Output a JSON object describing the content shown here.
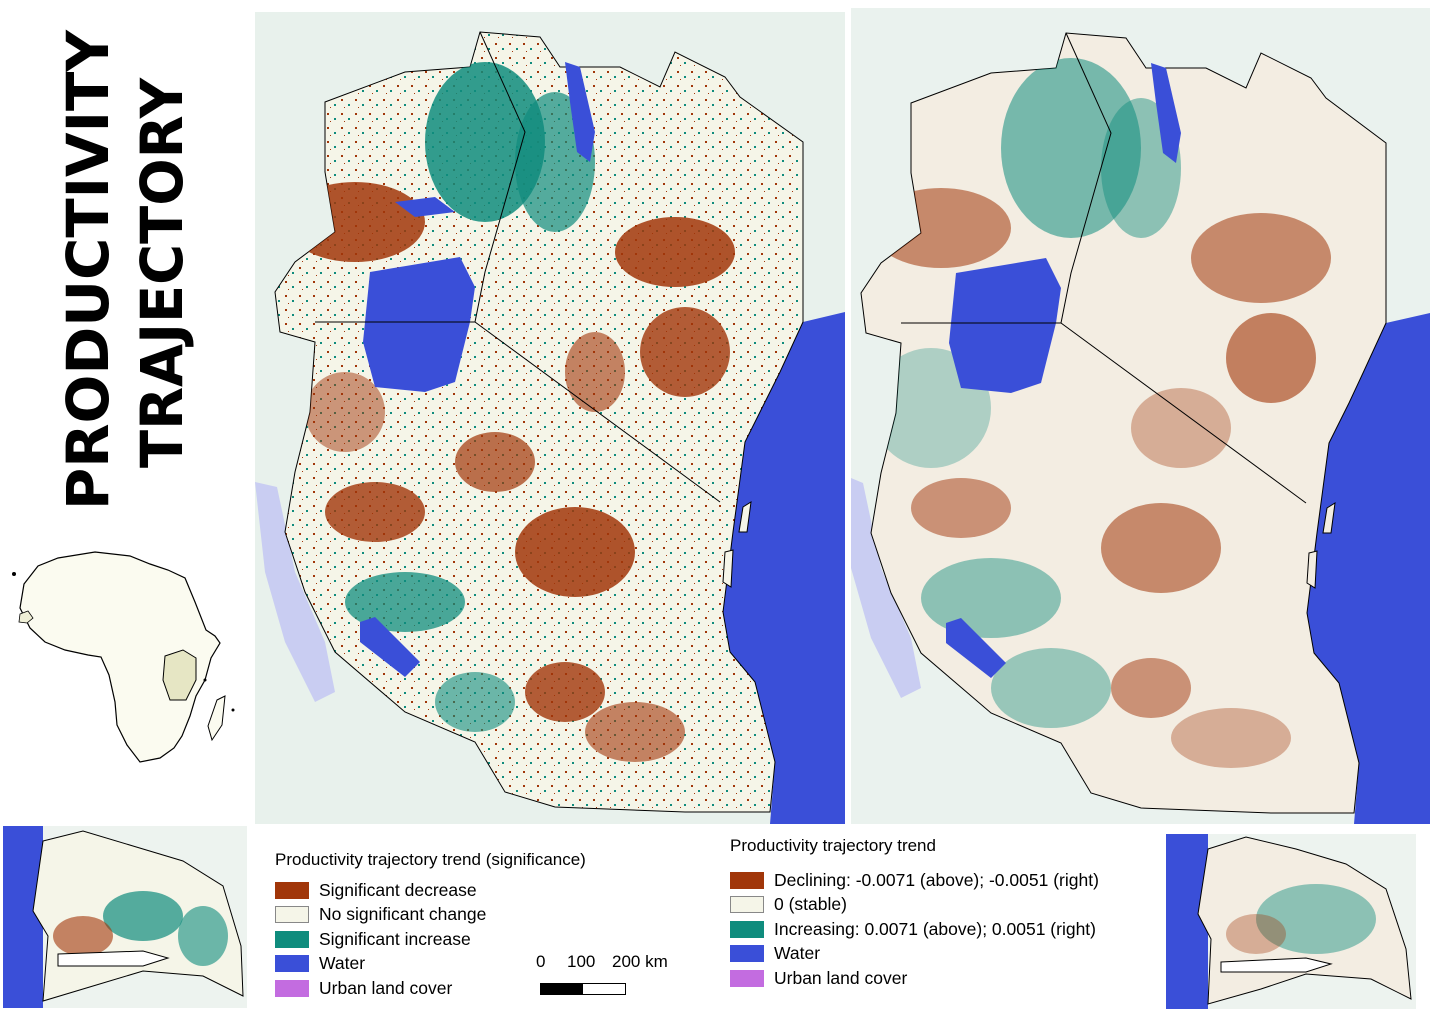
{
  "title": {
    "line1": "PRODUCTIVITY",
    "line2": "TRAJECTORY"
  },
  "maps": {
    "significance": {
      "name": "significance-map"
    },
    "trend": {
      "name": "trend-map"
    }
  },
  "legend_significance": {
    "title": "Productivity trajectory trend (significance)",
    "items": [
      {
        "label": "Significant decrease",
        "color": "#a13609"
      },
      {
        "label": "No significant change",
        "color": "#f5f5e8"
      },
      {
        "label": "Significant increase",
        "color": "#0f8c7d"
      },
      {
        "label": "Water",
        "color": "#3a4fd8"
      },
      {
        "label": "Urban land cover",
        "color": "#c36ce0"
      }
    ]
  },
  "legend_trend": {
    "title": "Productivity trajectory trend",
    "items": [
      {
        "label": "Declining: -0.0071 (above); -0.0051 (right)",
        "color": "#a13609"
      },
      {
        "label": "0 (stable)",
        "color": "#f5f5e8"
      },
      {
        "label": "Increasing: 0.0071 (above); 0.0051 (right)",
        "color": "#0f8c7d"
      },
      {
        "label": "Water",
        "color": "#3a4fd8"
      },
      {
        "label": "Urban land cover",
        "color": "#c36ce0"
      }
    ]
  },
  "scalebar": {
    "label_0": "0",
    "label_100": "100",
    "label_200": "200 km"
  },
  "colors": {
    "water": "#3a4fd8",
    "land": "#f5f5e8",
    "decrease": "#a13609",
    "increase": "#0f8c7d",
    "lake_outside": "#c9cdf2",
    "africa_fill": "#fbfbf0"
  }
}
